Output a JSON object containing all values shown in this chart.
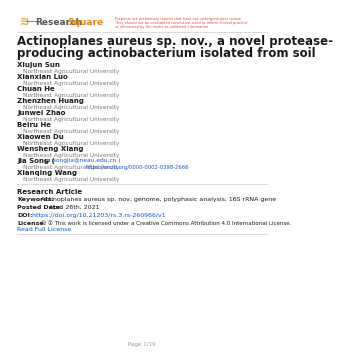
{
  "bg_color": "#ffffff",
  "disclaimer_lines": [
    "Preprints are preliminary reports that have not undergone peer review.",
    "They should not be considered conclusive, used to inform clinical practice,",
    "or referenced by the media as validated information."
  ],
  "title_line1": "Actinoplanes aureus sp. nov., a novel protease-",
  "title_line2": "producing actinobacterium isolated from soil",
  "authors": [
    {
      "name": "Xiujun Sun",
      "affil": "Northeast Agricultural University"
    },
    {
      "name": "Xianxian Luo",
      "affil": "Northeast Agricultural University"
    },
    {
      "name": "Chuan He",
      "affil": "Northeast Agricultural University"
    },
    {
      "name": "Zhenzhen Huang",
      "affil": "Northeast Agricultural University"
    },
    {
      "name": "Junwei Zhao",
      "affil": "Northeast Agricultural University"
    },
    {
      "name": "Beiru He",
      "affil": "Northeast Agricultural University"
    },
    {
      "name": "Xiaowen Du",
      "affil": "Northeast Agricultural University"
    },
    {
      "name": "Wensheng Xiang",
      "affil": "Northeast Agricultural University"
    }
  ],
  "corresponding_name": "Jia Song",
  "corresponding_email": "songjia@neau.edu.cn",
  "corresponding_affil": "Northeast Agricultural University",
  "orcid_url": "https://orcid.org/0000-0002-0398-2666",
  "last_author_name": "Xianqing Wang",
  "last_author_affil": "Northeast Agricultural University",
  "section": "Research Article",
  "keywords_label": "Keywords:",
  "keywords": "Actinoplanes aureus sp. nov, genome, polyphasic analysis, 16S rRNA gene",
  "posted_label": "Posted Date:",
  "posted_date": "April 26th, 2021",
  "doi_label": "DOI:",
  "doi_url": "https://doi.org/10.21203/rs.3.rs-260966/v1",
  "license_label": "License:",
  "license_icons": "© ①",
  "license_text": " This work is licensed under a Creative Commons Attribution 4.0 International License.",
  "read_license": "Read Full License",
  "page_footer": "Page 1/19",
  "title_color": "#1a1a1a",
  "author_name_color": "#1a1a1a",
  "affil_color": "#777777",
  "link_color": "#1155cc",
  "bold_color": "#1a1a1a",
  "disclaimer_color": "#dd4444",
  "separator_color": "#cccccc",
  "footer_color": "#999999"
}
